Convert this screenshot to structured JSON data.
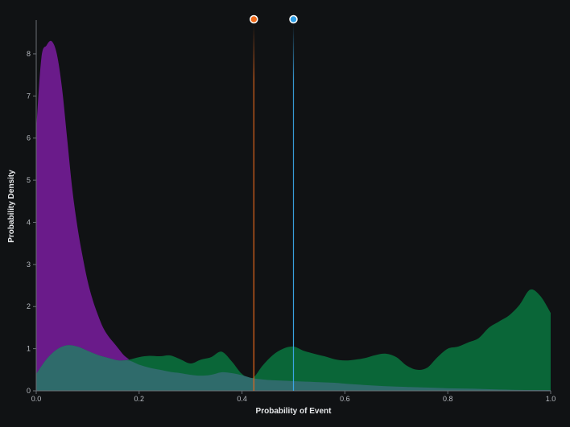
{
  "chart_data": {
    "type": "area",
    "xlabel": "Probability of Event",
    "ylabel": "Probability Density",
    "xlim": [
      0,
      1
    ],
    "ylim": [
      0,
      8.4
    ],
    "x_ticks": [
      "0.0",
      "0.2",
      "0.4",
      "0.6",
      "0.8",
      "1.0"
    ],
    "y_ticks": [
      "0",
      "1",
      "2",
      "3",
      "4",
      "5",
      "6",
      "7",
      "8"
    ],
    "grid": false,
    "legend": "none",
    "series": [
      {
        "color": "#6a1b8a",
        "x": [
          0,
          0.01,
          0.02,
          0.03,
          0.04,
          0.05,
          0.06,
          0.07,
          0.08,
          0.09,
          0.1,
          0.11,
          0.12,
          0.13,
          0.14,
          0.15,
          0.16,
          0.17,
          0.18,
          0.2,
          0.25,
          0.3,
          0.35,
          0.4,
          0.45,
          0.5,
          0.55,
          0.6,
          0.7,
          0.8,
          0.9,
          1.0
        ],
        "values": [
          6.2,
          7.9,
          8.2,
          8.3,
          8.0,
          7.2,
          6.0,
          4.8,
          3.9,
          3.2,
          2.6,
          2.15,
          1.8,
          1.5,
          1.3,
          1.15,
          1.0,
          0.85,
          0.75,
          0.55,
          0.4,
          0.33,
          0.3,
          0.27,
          0.24,
          0.22,
          0.2,
          0.17,
          0.12,
          0.06,
          0.03,
          0.02
        ]
      },
      {
        "color": "#0a6638",
        "x": [
          0,
          0.02,
          0.04,
          0.06,
          0.08,
          0.1,
          0.12,
          0.14,
          0.16,
          0.18,
          0.2,
          0.22,
          0.24,
          0.26,
          0.28,
          0.3,
          0.32,
          0.34,
          0.36,
          0.38,
          0.4,
          0.42,
          0.44,
          0.46,
          0.48,
          0.5,
          0.52,
          0.54,
          0.56,
          0.58,
          0.6,
          0.62,
          0.64,
          0.66,
          0.68,
          0.7,
          0.72,
          0.74,
          0.76,
          0.78,
          0.8,
          0.82,
          0.84,
          0.86,
          0.88,
          0.9,
          0.92,
          0.94,
          0.96,
          0.98,
          1.0
        ],
        "values": [
          0.4,
          0.75,
          0.98,
          1.08,
          1.05,
          0.95,
          0.85,
          0.78,
          0.72,
          0.74,
          0.8,
          0.83,
          0.82,
          0.84,
          0.75,
          0.65,
          0.74,
          0.8,
          0.93,
          0.7,
          0.4,
          0.3,
          0.6,
          0.85,
          1.0,
          1.05,
          0.95,
          0.88,
          0.82,
          0.75,
          0.72,
          0.74,
          0.78,
          0.85,
          0.88,
          0.8,
          0.6,
          0.5,
          0.55,
          0.8,
          1.0,
          1.05,
          1.15,
          1.25,
          1.5,
          1.65,
          1.8,
          2.05,
          2.4,
          2.25,
          1.85
        ]
      },
      {
        "color": "#2f6b6b",
        "x": [
          0,
          0.02,
          0.04,
          0.06,
          0.08,
          0.1,
          0.12,
          0.14,
          0.16,
          0.18,
          0.2,
          0.22,
          0.24,
          0.26,
          0.28,
          0.3,
          0.32,
          0.34,
          0.36,
          0.38,
          0.4,
          0.42,
          0.44,
          0.46,
          0.48,
          0.5,
          0.52,
          0.54,
          0.56,
          0.58,
          0.6,
          0.65,
          0.7,
          0.75,
          0.8,
          0.85,
          0.9,
          0.95,
          1.0
        ],
        "values": [
          0.4,
          0.75,
          0.98,
          1.08,
          1.05,
          0.95,
          0.85,
          0.78,
          0.72,
          0.72,
          0.62,
          0.55,
          0.5,
          0.45,
          0.42,
          0.38,
          0.36,
          0.38,
          0.44,
          0.42,
          0.37,
          0.3,
          0.27,
          0.25,
          0.24,
          0.23,
          0.22,
          0.21,
          0.2,
          0.19,
          0.17,
          0.13,
          0.1,
          0.08,
          0.06,
          0.05,
          0.03,
          0.02,
          0.02
        ]
      }
    ],
    "reference_lines": [
      {
        "x": 0.423,
        "color": "#e8681c",
        "marker_color": "#f06a1a"
      },
      {
        "x": 0.5,
        "color": "#3aa6e6",
        "marker_color": "#2f9fe6"
      }
    ]
  }
}
